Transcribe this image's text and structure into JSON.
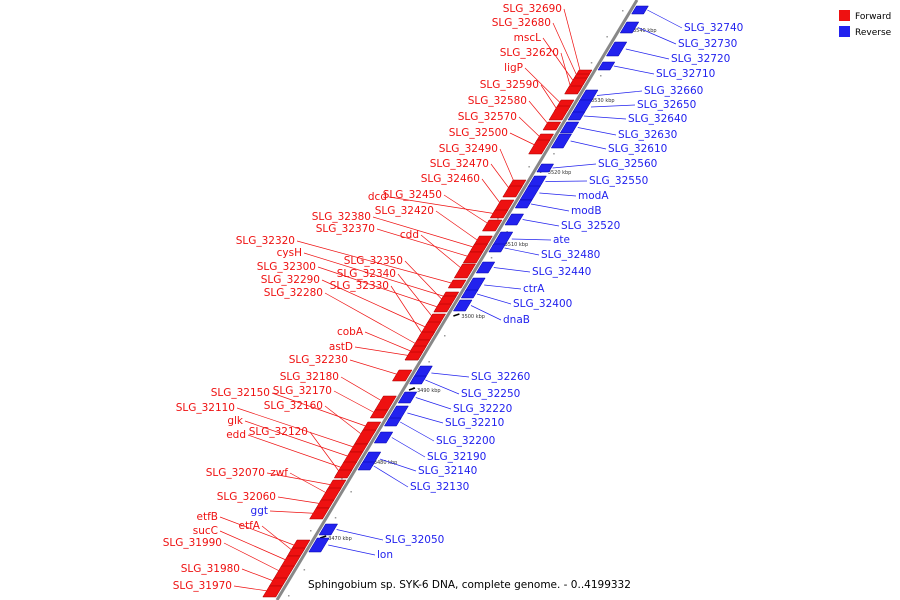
{
  "legend": [
    {
      "label": "Forward",
      "color": "#ee1111"
    },
    {
      "label": "Reverse",
      "color": "#2222ee"
    }
  ],
  "caption": "Sphingobium sp. SYK-6 DNA, complete genome. - 0..4199332",
  "colors": {
    "forward": "#ee1111",
    "reverse": "#2222ee",
    "backbone": "#888888"
  },
  "ticks": [
    "3540 kbp",
    "3530 kbp",
    "3520 kbp",
    "3510 kbp",
    "3500 kbp",
    "3490 kbp",
    "3480 kbp",
    "3470 kbp"
  ],
  "forward_genes": [
    "SLG_32690",
    "SLG_32680",
    "mscL",
    "SLG_32620",
    "ligP",
    "SLG_32590",
    "SLG_32580",
    "SLG_32570",
    "SLG_32500",
    "SLG_32490",
    "SLG_32470",
    "SLG_32460",
    "dcd",
    "SLG_32450",
    "SLG_32420",
    "SLG_32380",
    "SLG_32370",
    "cdd",
    "SLG_32320",
    "cysH",
    "SLG_32350",
    "SLG_32300",
    "SLG_32340",
    "SLG_32290",
    "SLG_32330",
    "SLG_32280",
    "cobA",
    "astD",
    "SLG_32230",
    "SLG_32180",
    "SLG_32170",
    "SLG_32150",
    "SLG_32160",
    "SLG_32110",
    "glk",
    "edd",
    "SLG_32120",
    "SLG_32070",
    "zwf",
    "SLG_32060",
    "ggt",
    "etfB",
    "etfA",
    "sucC",
    "SLG_31990",
    "SLG_31980",
    "SLG_31970"
  ],
  "reverse_genes": [
    "SLG_32740",
    "SLG_32730",
    "SLG_32720",
    "SLG_32710",
    "SLG_32660",
    "SLG_32650",
    "SLG_32640",
    "SLG_32630",
    "SLG_32610",
    "SLG_32560",
    "SLG_32550",
    "modA",
    "modB",
    "SLG_32520",
    "ate",
    "SLG_32480",
    "SLG_32440",
    "ctrA",
    "SLG_32400",
    "dnaB",
    "SLG_32260",
    "SLG_32250",
    "SLG_32220",
    "SLG_32210",
    "SLG_32200",
    "SLG_32190",
    "SLG_32140",
    "SLG_32130",
    "SLG_32050",
    "lon"
  ]
}
